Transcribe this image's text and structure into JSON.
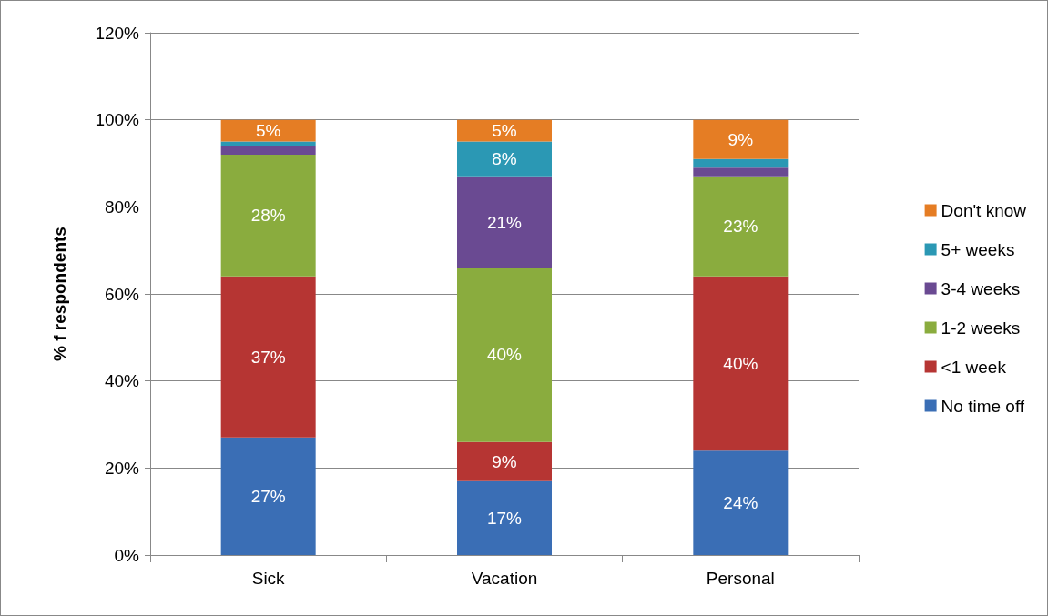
{
  "chart_data": {
    "type": "bar",
    "stacked": true,
    "ylabel": "% f respondents",
    "categories": [
      "Sick",
      "Vacation",
      "Personal"
    ],
    "series": [
      {
        "name": "No time off",
        "color": "#3a6eb5",
        "values": [
          27,
          17,
          24
        ],
        "value_labels": [
          "27%",
          "17%",
          "24%"
        ]
      },
      {
        "name": "<1 week",
        "color": "#b63533",
        "values": [
          37,
          9,
          40
        ],
        "value_labels": [
          "37%",
          "9%",
          "40%"
        ]
      },
      {
        "name": "1-2 weeks",
        "color": "#8aac3e",
        "values": [
          28,
          40,
          23
        ],
        "value_labels": [
          "28%",
          "40%",
          "23%"
        ]
      },
      {
        "name": "3-4 weeks",
        "color": "#6a4a92",
        "values": [
          2,
          21,
          2
        ],
        "value_labels": [
          null,
          "21%",
          null
        ]
      },
      {
        "name": "5+ weeks",
        "color": "#2b98b4",
        "values": [
          1,
          8,
          2
        ],
        "value_labels": [
          null,
          "8%",
          null
        ]
      },
      {
        "name": "Don't know",
        "color": "#e57d24",
        "values": [
          5,
          5,
          9
        ],
        "value_labels": [
          "5%",
          "5%",
          "9%"
        ]
      }
    ],
    "ylim": [
      0,
      120
    ],
    "yticks": [
      {
        "value": 0,
        "label": "0%"
      },
      {
        "value": 20,
        "label": "20%"
      },
      {
        "value": 40,
        "label": "40%"
      },
      {
        "value": 60,
        "label": "60%"
      },
      {
        "value": 80,
        "label": "80%"
      },
      {
        "value": 100,
        "label": "100%"
      },
      {
        "value": 120,
        "label": "120%"
      }
    ],
    "grid": "y",
    "legend": "right"
  }
}
